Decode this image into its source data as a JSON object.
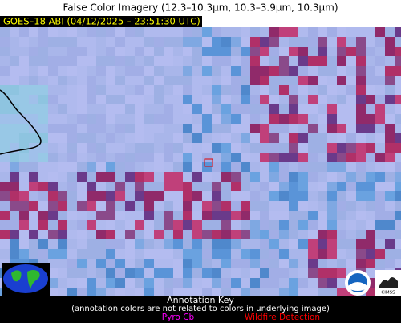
{
  "header": {
    "title": "False Color Imagery (12.3–10.3µm, 10.3–3.9µm, 10.3µm)"
  },
  "image": {
    "label": "GOES–18 ABI (04/12/2025 – 23:51:30 UTC)"
  },
  "annotation_key": {
    "title": "Annotation Key",
    "note": "(annotation colors are not related to colors in underlying image)",
    "items": [
      "Pyro Cb",
      "Wildfire Detection"
    ]
  },
  "logos": {
    "right": "CIMSS"
  }
}
